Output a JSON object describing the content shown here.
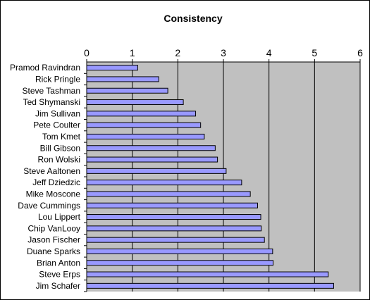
{
  "chart_data": {
    "type": "bar",
    "orientation": "horizontal",
    "title": "Consistency",
    "xlabel": "",
    "ylabel": "",
    "xlim": [
      0,
      6
    ],
    "x_ticks": [
      "0",
      "1",
      "2",
      "3",
      "4",
      "5",
      "6"
    ],
    "x_axis_position": "top",
    "grid": true,
    "legend": "none",
    "categories": [
      "Pramod Ravindran",
      "Rick Pringle",
      "Steve Tashman",
      "Ted Shymanski",
      "Jim Sullivan",
      "Pete Coulter",
      "Tom Kmet",
      "Bill Gibson",
      "Ron Wolski",
      "Steve Aaltonen",
      "Jeff Dziedzic",
      "Mike Moscone",
      "Dave Cummings",
      "Lou Lippert",
      "Chip VanLooy",
      "Jason Fischer",
      "Duane Sparks",
      "Brian Anton",
      "Steve Erps",
      "Jim Schafer"
    ],
    "values": [
      1.12,
      1.58,
      1.78,
      2.12,
      2.39,
      2.5,
      2.58,
      2.82,
      2.87,
      3.06,
      3.4,
      3.59,
      3.75,
      3.82,
      3.83,
      3.9,
      4.08,
      4.09,
      5.3,
      5.42
    ],
    "colors": {
      "plot_background": "#c0c0c0",
      "bar_fill": "#9999ff",
      "bar_stroke": "#000000",
      "gridline": "#000000"
    }
  }
}
